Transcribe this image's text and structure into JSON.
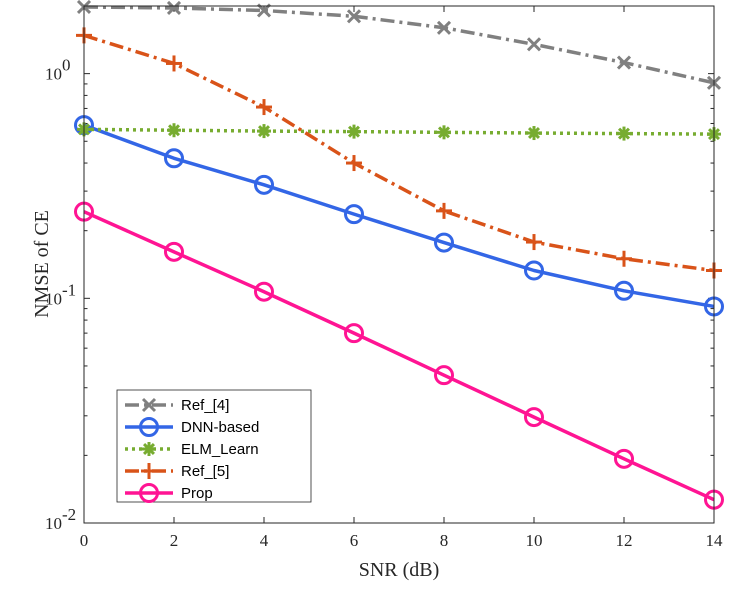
{
  "chart_data": {
    "type": "line",
    "xlabel": "SNR (dB)",
    "ylabel": "NMSE of CE",
    "x": [
      0,
      2,
      4,
      6,
      8,
      10,
      12,
      14
    ],
    "xlim": [
      0,
      14
    ],
    "ylim": [
      0.01,
      2.0
    ],
    "yscale": "log",
    "xticks": [
      "0",
      "2",
      "4",
      "6",
      "8",
      "10",
      "12",
      "14"
    ],
    "yticks": [
      {
        "value": 0.01,
        "base": "10",
        "exp": "-2"
      },
      {
        "value": 0.1,
        "base": "10",
        "exp": "-1"
      },
      {
        "value": 1,
        "base": "10",
        "exp": "0"
      }
    ],
    "grid": false,
    "legend_position": "bottom-left",
    "series": [
      {
        "name": "Ref_[4]",
        "color": "#808080",
        "dash": "dash-dot",
        "marker": "x",
        "values": [
          1.98,
          1.96,
          1.91,
          1.8,
          1.6,
          1.35,
          1.12,
          0.91
        ]
      },
      {
        "name": "DNN-based",
        "color": "#3366e6",
        "dash": "solid",
        "marker": "circle",
        "values": [
          0.59,
          0.42,
          0.32,
          0.237,
          0.177,
          0.133,
          0.108,
          0.092
        ]
      },
      {
        "name": "ELM_Learn",
        "color": "#77ac30",
        "dash": "dotted",
        "marker": "asterisk",
        "values": [
          0.565,
          0.56,
          0.555,
          0.552,
          0.548,
          0.544,
          0.541,
          0.538
        ]
      },
      {
        "name": "Ref_[5]",
        "color": "#d95319",
        "dash": "dash-dot",
        "marker": "plus",
        "values": [
          1.48,
          1.11,
          0.71,
          0.4,
          0.245,
          0.178,
          0.15,
          0.133
        ]
      },
      {
        "name": "Prop",
        "color": "#ff1493",
        "dash": "solid",
        "marker": "circle",
        "values": [
          0.243,
          0.161,
          0.107,
          0.07,
          0.0455,
          0.0296,
          0.0193,
          0.0127
        ]
      }
    ]
  }
}
